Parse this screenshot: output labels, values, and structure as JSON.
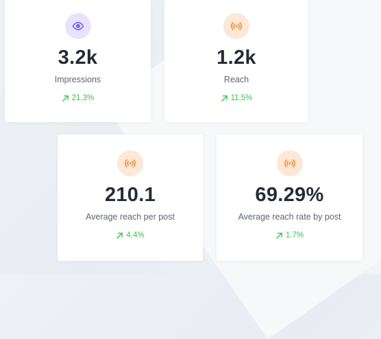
{
  "stats": [
    {
      "icon": "eye-icon",
      "accent": "#7b68ee",
      "value": "3.2k",
      "label": "Impressions",
      "change": "21,3%",
      "trend": "up"
    },
    {
      "icon": "broadcast-icon",
      "accent": "#f28c3a",
      "value": "1.2k",
      "label": "Reach",
      "change": "11,5%",
      "trend": "up"
    },
    {
      "icon": "broadcast-icon",
      "accent": "#f28c3a",
      "value": "210.1",
      "label": "Average reach per post",
      "change": "4,4%",
      "trend": "up"
    },
    {
      "icon": "broadcast-icon",
      "accent": "#f28c3a",
      "value": "69.29%",
      "label": "Average reach rate by post",
      "change": "1.7%",
      "trend": "up"
    }
  ],
  "colors": {
    "positive": "#3bc24e",
    "value_text": "#262b36",
    "label_text": "#5e6470"
  }
}
